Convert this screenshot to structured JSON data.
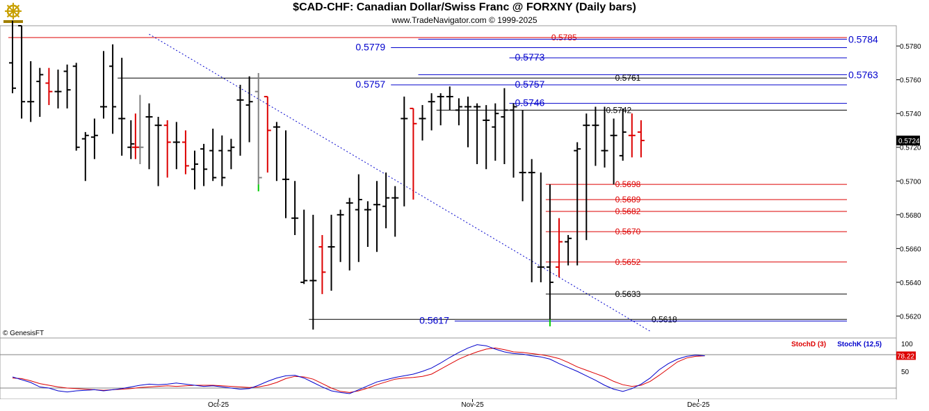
{
  "header": {
    "title": "$CAD-CHF:  Canadian Dollar/Swiss Franc @ FORXNY  (Daily bars)",
    "subtitle": "www.TradeNavigator.com © 1999-2025",
    "credit": "© GenesisFT",
    "logo_icon": "ship-wheel-icon"
  },
  "chart_data": [
    {
      "type": "ohlc",
      "symbol": "$CAD-CHF",
      "ylim": [
        0.5607,
        0.5792
      ],
      "y_ticks": [
        "0.5780",
        "0.5760",
        "0.5740",
        "0.5720",
        "0.5700",
        "0.5680",
        "0.5660",
        "0.5640",
        "0.5620"
      ],
      "x_labels": [
        "Oct-25",
        "Nov-25",
        "Dec-25"
      ],
      "last_price": "0.5724",
      "colors": {
        "up": "#000000",
        "down": "#dd0000",
        "neutral": "#808080",
        "signal": "#00cc00"
      },
      "bars": [
        {
          "o": 0.577,
          "h": 0.5795,
          "l": 0.5752,
          "c": 0.5755,
          "color": "black"
        },
        {
          "o": 0.5792,
          "h": 0.5792,
          "l": 0.5737,
          "c": 0.5747,
          "color": "black"
        },
        {
          "o": 0.5747,
          "h": 0.5771,
          "l": 0.5735,
          "c": 0.5747,
          "color": "black"
        },
        {
          "o": 0.5759,
          "h": 0.5767,
          "l": 0.5738,
          "c": 0.5763,
          "color": "black"
        },
        {
          "o": 0.5758,
          "h": 0.5767,
          "l": 0.5745,
          "c": 0.5753,
          "color": "red"
        },
        {
          "o": 0.5753,
          "h": 0.5766,
          "l": 0.5743,
          "c": 0.5753,
          "color": "black"
        },
        {
          "o": 0.5765,
          "h": 0.5769,
          "l": 0.5743,
          "c": 0.5754,
          "color": "black"
        },
        {
          "o": 0.5768,
          "h": 0.577,
          "l": 0.5718,
          "c": 0.572,
          "color": "black"
        },
        {
          "o": 0.5725,
          "h": 0.5729,
          "l": 0.57,
          "c": 0.5727,
          "color": "black"
        },
        {
          "o": 0.5726,
          "h": 0.5737,
          "l": 0.5713,
          "c": 0.5727,
          "color": "black"
        },
        {
          "o": 0.5744,
          "h": 0.5777,
          "l": 0.5737,
          "c": 0.5744,
          "color": "black"
        },
        {
          "o": 0.5768,
          "h": 0.5781,
          "l": 0.5728,
          "c": 0.5744,
          "color": "black"
        },
        {
          "o": 0.5737,
          "h": 0.5773,
          "l": 0.5715,
          "c": 0.5737,
          "color": "black"
        },
        {
          "o": 0.572,
          "h": 0.5736,
          "l": 0.5713,
          "c": 0.5722,
          "color": "black"
        },
        {
          "o": 0.572,
          "h": 0.5751,
          "l": 0.571,
          "c": 0.572,
          "color": "neutral"
        },
        {
          "o": 0.5738,
          "h": 0.5746,
          "l": 0.5707,
          "c": 0.5738,
          "color": "black"
        },
        {
          "o": 0.5733,
          "h": 0.5738,
          "l": 0.5697,
          "c": 0.5733,
          "color": "black"
        },
        {
          "o": 0.5733,
          "h": 0.5736,
          "l": 0.5702,
          "c": 0.5723,
          "color": "red"
        },
        {
          "o": 0.5723,
          "h": 0.5735,
          "l": 0.5707,
          "c": 0.5723,
          "color": "black"
        },
        {
          "o": 0.5723,
          "h": 0.573,
          "l": 0.5704,
          "c": 0.5709,
          "color": "red"
        },
        {
          "o": 0.5707,
          "h": 0.5718,
          "l": 0.5695,
          "c": 0.571,
          "color": "black"
        },
        {
          "o": 0.5719,
          "h": 0.5722,
          "l": 0.5697,
          "c": 0.5707,
          "color": "black"
        },
        {
          "o": 0.5718,
          "h": 0.5731,
          "l": 0.57,
          "c": 0.5702,
          "color": "black"
        },
        {
          "o": 0.5718,
          "h": 0.5727,
          "l": 0.5697,
          "c": 0.5702,
          "color": "black"
        },
        {
          "o": 0.5718,
          "h": 0.5725,
          "l": 0.5707,
          "c": 0.572,
          "color": "black"
        },
        {
          "o": 0.5748,
          "h": 0.5757,
          "l": 0.5715,
          "c": 0.5748,
          "color": "black"
        },
        {
          "o": 0.5745,
          "h": 0.5762,
          "l": 0.5723,
          "c": 0.5747,
          "color": "black"
        },
        {
          "o": 0.5753,
          "h": 0.5764,
          "l": 0.5698,
          "c": 0.5702,
          "color": "neutral"
        },
        {
          "o": 0.575,
          "h": 0.575,
          "l": 0.5705,
          "c": 0.573,
          "color": "red"
        },
        {
          "o": 0.5732,
          "h": 0.5735,
          "l": 0.57,
          "c": 0.5732,
          "color": "black"
        },
        {
          "o": 0.5701,
          "h": 0.573,
          "l": 0.5678,
          "c": 0.5701,
          "color": "black"
        },
        {
          "o": 0.5678,
          "h": 0.57,
          "l": 0.5668,
          "c": 0.5678,
          "color": "black"
        },
        {
          "o": 0.564,
          "h": 0.5683,
          "l": 0.5639,
          "c": 0.5641,
          "color": "black"
        },
        {
          "o": 0.5641,
          "h": 0.568,
          "l": 0.5612,
          "c": 0.5641,
          "color": "black"
        },
        {
          "o": 0.5661,
          "h": 0.5668,
          "l": 0.5633,
          "c": 0.5646,
          "color": "red"
        },
        {
          "o": 0.5661,
          "h": 0.568,
          "l": 0.5635,
          "c": 0.5661,
          "color": "black"
        },
        {
          "o": 0.568,
          "h": 0.5683,
          "l": 0.5652,
          "c": 0.568,
          "color": "black"
        },
        {
          "o": 0.5687,
          "h": 0.569,
          "l": 0.5647,
          "c": 0.5687,
          "color": "black"
        },
        {
          "o": 0.5683,
          "h": 0.5704,
          "l": 0.5652,
          "c": 0.5689,
          "color": "black"
        },
        {
          "o": 0.5683,
          "h": 0.5688,
          "l": 0.5661,
          "c": 0.5683,
          "color": "black"
        },
        {
          "o": 0.5686,
          "h": 0.57,
          "l": 0.5658,
          "c": 0.5686,
          "color": "black"
        },
        {
          "o": 0.5685,
          "h": 0.5705,
          "l": 0.5672,
          "c": 0.569,
          "color": "black"
        },
        {
          "o": 0.569,
          "h": 0.5697,
          "l": 0.5667,
          "c": 0.569,
          "color": "black"
        },
        {
          "o": 0.5737,
          "h": 0.575,
          "l": 0.5685,
          "c": 0.5737,
          "color": "black"
        },
        {
          "o": 0.5743,
          "h": 0.5743,
          "l": 0.5689,
          "c": 0.5734,
          "color": "red"
        },
        {
          "o": 0.5737,
          "h": 0.5745,
          "l": 0.5724,
          "c": 0.5737,
          "color": "black"
        },
        {
          "o": 0.5747,
          "h": 0.5752,
          "l": 0.573,
          "c": 0.5747,
          "color": "black"
        },
        {
          "o": 0.575,
          "h": 0.5752,
          "l": 0.5733,
          "c": 0.575,
          "color": "black"
        },
        {
          "o": 0.575,
          "h": 0.5756,
          "l": 0.5742,
          "c": 0.575,
          "color": "black"
        },
        {
          "o": 0.5742,
          "h": 0.5749,
          "l": 0.5733,
          "c": 0.5744,
          "color": "black"
        },
        {
          "o": 0.5744,
          "h": 0.575,
          "l": 0.572,
          "c": 0.5744,
          "color": "black"
        },
        {
          "o": 0.5744,
          "h": 0.5746,
          "l": 0.571,
          "c": 0.5744,
          "color": "black"
        },
        {
          "o": 0.5736,
          "h": 0.5745,
          "l": 0.5707,
          "c": 0.5736,
          "color": "black"
        },
        {
          "o": 0.5732,
          "h": 0.5746,
          "l": 0.5712,
          "c": 0.574,
          "color": "black"
        },
        {
          "o": 0.5738,
          "h": 0.5755,
          "l": 0.571,
          "c": 0.5742,
          "color": "black"
        },
        {
          "o": 0.5742,
          "h": 0.5746,
          "l": 0.5702,
          "c": 0.5744,
          "color": "black"
        },
        {
          "o": 0.5705,
          "h": 0.5742,
          "l": 0.5688,
          "c": 0.5705,
          "color": "black"
        },
        {
          "o": 0.5705,
          "h": 0.5713,
          "l": 0.564,
          "c": 0.5705,
          "color": "black"
        },
        {
          "o": 0.5649,
          "h": 0.5705,
          "l": 0.564,
          "c": 0.5649,
          "color": "black"
        },
        {
          "o": 0.5649,
          "h": 0.5698,
          "l": 0.5618,
          "c": 0.564,
          "color": "black"
        },
        {
          "o": 0.5649,
          "h": 0.5678,
          "l": 0.5643,
          "c": 0.5664,
          "color": "red"
        },
        {
          "o": 0.5664,
          "h": 0.5668,
          "l": 0.565,
          "c": 0.5666,
          "color": "black"
        },
        {
          "o": 0.5718,
          "h": 0.5723,
          "l": 0.565,
          "c": 0.5719,
          "color": "black"
        },
        {
          "o": 0.5733,
          "h": 0.574,
          "l": 0.5665,
          "c": 0.5733,
          "color": "black"
        },
        {
          "o": 0.5733,
          "h": 0.5744,
          "l": 0.5709,
          "c": 0.5733,
          "color": "black"
        },
        {
          "o": 0.5718,
          "h": 0.5744,
          "l": 0.5708,
          "c": 0.5718,
          "color": "black"
        },
        {
          "o": 0.5727,
          "h": 0.5737,
          "l": 0.5698,
          "c": 0.5727,
          "color": "black"
        },
        {
          "o": 0.5715,
          "h": 0.5743,
          "l": 0.5712,
          "c": 0.5729,
          "color": "black"
        },
        {
          "o": 0.5727,
          "h": 0.574,
          "l": 0.5714,
          "c": 0.5727,
          "color": "red"
        },
        {
          "o": 0.5729,
          "h": 0.5736,
          "l": 0.5714,
          "c": 0.5724,
          "color": "red"
        }
      ],
      "signal_bar_indices": [
        27,
        59
      ],
      "extra_bars": [
        {
          "after_index": 13,
          "o": 0.572,
          "h": 0.574,
          "l": 0.5713,
          "c": 0.572,
          "color": "red"
        }
      ],
      "trendline": {
        "x0_index": 15,
        "y0": 0.5787,
        "x1_index": 70,
        "y1": 0.5611,
        "style": "dotted",
        "color": "#0000cc"
      },
      "levels": [
        {
          "value": 0.5785,
          "label": "0.5785",
          "color": "#dd0000",
          "from_index": 0,
          "label_index": 59
        },
        {
          "value": 0.5784,
          "label": "0.5784",
          "color": "#0000cc",
          "from_index": 45,
          "label_index": 45,
          "right_label": "0.5784"
        },
        {
          "value": 0.5779,
          "label": "0.5779",
          "color": "#0000cc",
          "from_index": 42,
          "label_index": 42,
          "left_label": true
        },
        {
          "value": 0.5773,
          "label": "0.5773",
          "color": "#0000cc",
          "from_index": 55,
          "label_index": 55
        },
        {
          "value": 0.5763,
          "label": "0.5763",
          "color": "#0000cc",
          "from_index": 45,
          "label_index": 45,
          "right_label": "0.5763"
        },
        {
          "value": 0.5761,
          "label": "0.5761",
          "color": "#000000",
          "from_index": 12,
          "label_index": 66
        },
        {
          "value": 0.5757,
          "label": "0.5757",
          "color": "#0000cc",
          "from_index": 42,
          "label_index": 42,
          "left_label": true
        },
        {
          "value": 0.5757,
          "label": "0.5757",
          "color": "#0000cc",
          "from_index": 55,
          "label_index": 55
        },
        {
          "value": 0.5746,
          "label": "0.5746",
          "color": "#0000cc",
          "from_index": 55,
          "label_index": 55
        },
        {
          "value": 0.5742,
          "label": "0.5742",
          "color": "#000000",
          "from_index": 47,
          "label_index": 65
        },
        {
          "value": 0.5698,
          "label": "0.5698",
          "color": "#dd0000",
          "from_index": 59,
          "label_index": 66
        },
        {
          "value": 0.5689,
          "label": "0.5689",
          "color": "#dd0000",
          "from_index": 59,
          "label_index": 66
        },
        {
          "value": 0.5682,
          "label": "0.5682",
          "color": "#dd0000",
          "from_index": 59,
          "label_index": 66
        },
        {
          "value": 0.567,
          "label": "0.5670",
          "color": "#dd0000",
          "from_index": 59,
          "label_index": 66
        },
        {
          "value": 0.5652,
          "label": "0.5652",
          "color": "#dd0000",
          "from_index": 59,
          "label_index": 66
        },
        {
          "value": 0.5633,
          "label": "0.5633",
          "color": "#000000",
          "from_index": 59,
          "label_index": 66
        },
        {
          "value": 0.5618,
          "label": "0.5618",
          "color": "#000000",
          "from_index": 33,
          "label_index": 70
        },
        {
          "value": 0.5617,
          "label": "0.5617",
          "color": "#0000cc",
          "from_index": 49,
          "label_index": 49,
          "left_label": true
        }
      ]
    },
    {
      "type": "line",
      "name": "stochastic",
      "ylim": [
        0,
        110
      ],
      "y_ticks": [
        "100",
        "50"
      ],
      "reference_lines": [
        80,
        20
      ],
      "last_value": "78.22",
      "series": [
        {
          "name": "StochD (3)",
          "color": "#dd0000",
          "values": [
            38,
            37,
            33,
            28,
            25,
            22,
            20,
            19,
            18,
            17,
            16,
            17,
            18,
            19,
            21,
            22,
            23,
            24,
            23,
            24,
            25,
            25,
            25,
            24,
            23,
            22,
            21,
            22,
            25,
            30,
            37,
            41,
            40,
            36,
            28,
            20,
            14,
            12,
            15,
            20,
            26,
            31,
            36,
            38,
            39,
            41,
            45,
            54,
            63,
            72,
            79,
            85,
            90,
            92,
            89,
            85,
            84,
            82,
            80,
            77,
            73,
            66,
            58,
            52,
            46,
            40,
            32,
            26,
            23,
            25,
            32,
            43,
            55,
            67,
            74,
            77,
            78
          ]
        },
        {
          "name": "StochK (12,5)",
          "color": "#0000cc",
          "values": [
            40,
            35,
            30,
            22,
            20,
            15,
            13,
            15,
            16,
            17,
            15,
            17,
            19,
            22,
            25,
            27,
            26,
            27,
            29,
            27,
            25,
            23,
            24,
            22,
            20,
            18,
            19,
            25,
            32,
            38,
            42,
            43,
            38,
            30,
            22,
            15,
            12,
            10,
            17,
            24,
            31,
            35,
            39,
            42,
            45,
            50,
            56,
            65,
            75,
            84,
            92,
            98,
            96,
            90,
            85,
            82,
            81,
            78,
            76,
            72,
            64,
            57,
            50,
            42,
            34,
            25,
            18,
            14,
            19,
            27,
            38,
            53,
            64,
            72,
            77,
            79,
            78
          ]
        }
      ]
    }
  ]
}
